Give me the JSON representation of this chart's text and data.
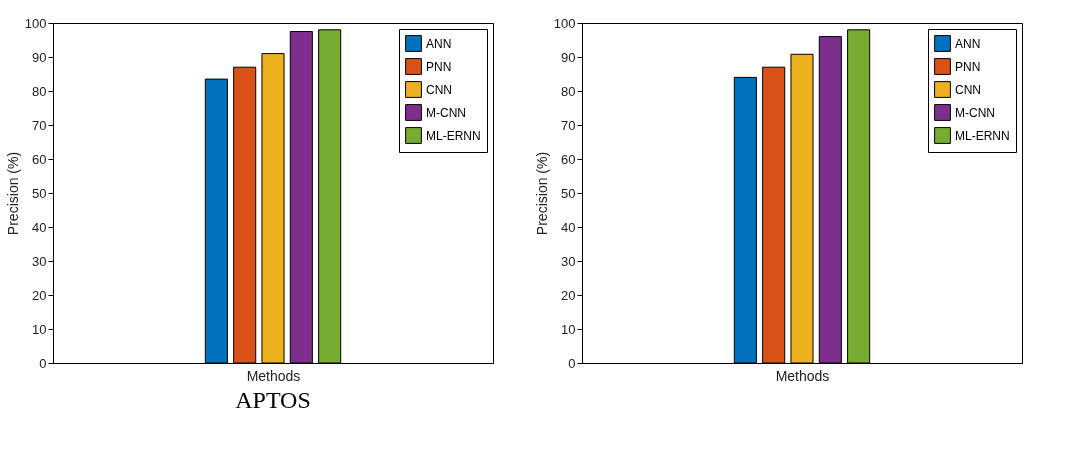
{
  "chart_data": [
    {
      "type": "bar",
      "title": "APTOS",
      "xlabel": "Methods",
      "ylabel": "Precision (%)",
      "categories": [
        null
      ],
      "ylim": [
        0,
        100
      ],
      "yticks": [
        0,
        10,
        20,
        30,
        40,
        50,
        60,
        70,
        80,
        90,
        100
      ],
      "grid": false,
      "legend": "top right",
      "series": [
        {
          "name": "ANN",
          "color": "#0072bd",
          "values": [
            83.5
          ]
        },
        {
          "name": "PNN",
          "color": "#d95319",
          "values": [
            87
          ]
        },
        {
          "name": "CNN",
          "color": "#edb120",
          "values": [
            91
          ]
        },
        {
          "name": "M-CNN",
          "color": "#7e2f8e",
          "values": [
            97.5
          ]
        },
        {
          "name": "ML-ERNN",
          "color": "#77ac30",
          "values": [
            98
          ]
        }
      ]
    },
    {
      "type": "bar",
      "xlabel": "Methods",
      "ylabel": "Precision (%)",
      "categories": [
        null
      ],
      "ylim": [
        0,
        100
      ],
      "yticks": [
        0,
        10,
        20,
        30,
        40,
        50,
        60,
        70,
        80,
        90,
        100
      ],
      "grid": false,
      "legend": "top right",
      "series": [
        {
          "name": "ANN",
          "color": "#0072bd",
          "values": [
            84
          ]
        },
        {
          "name": "PNN",
          "color": "#d95319",
          "values": [
            87
          ]
        },
        {
          "name": "CNN",
          "color": "#edb120",
          "values": [
            90.8
          ]
        },
        {
          "name": "M-CNN",
          "color": "#7e2f8e",
          "values": [
            96
          ]
        },
        {
          "name": "ML-ERNN",
          "color": "#77ac30",
          "values": [
            98
          ]
        }
      ]
    }
  ]
}
